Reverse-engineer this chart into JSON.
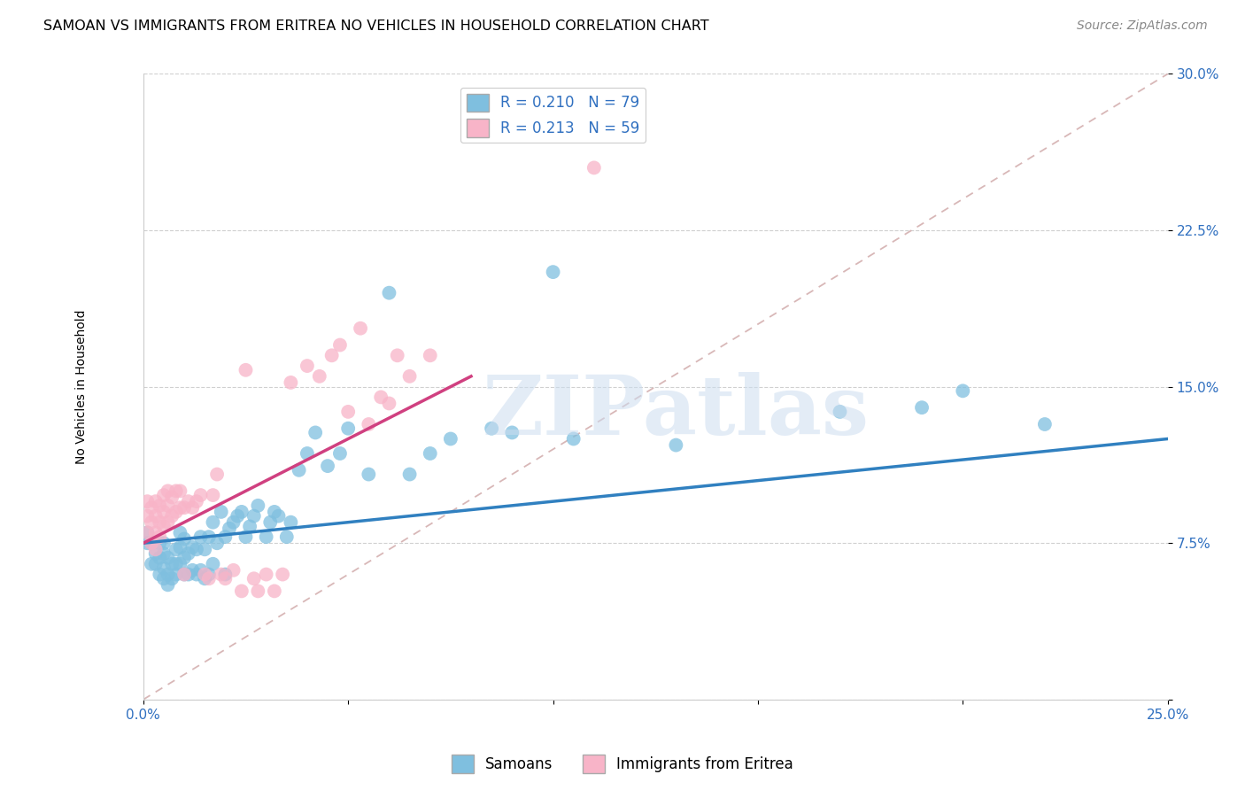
{
  "title": "SAMOAN VS IMMIGRANTS FROM ERITREA NO VEHICLES IN HOUSEHOLD CORRELATION CHART",
  "source": "Source: ZipAtlas.com",
  "ylabel_label": "No Vehicles in Household",
  "watermark": "ZIPatlas",
  "xlim": [
    0.0,
    0.25
  ],
  "ylim": [
    0.0,
    0.3
  ],
  "xtick_positions": [
    0.0,
    0.05,
    0.1,
    0.15,
    0.2,
    0.25
  ],
  "xtick_labels": [
    "0.0%",
    "",
    "",
    "",
    "",
    "25.0%"
  ],
  "ytick_positions": [
    0.0,
    0.075,
    0.15,
    0.225,
    0.3
  ],
  "ytick_labels": [
    "",
    "7.5%",
    "15.0%",
    "22.5%",
    "30.0%"
  ],
  "legend_label1": "R = 0.210   N = 79",
  "legend_label2": "R = 0.213   N = 59",
  "legend_bottom_label1": "Samoans",
  "legend_bottom_label2": "Immigrants from Eritrea",
  "blue_color": "#7fbfdf",
  "pink_color": "#f8b4c8",
  "blue_line_color": "#3080c0",
  "pink_line_color": "#d04080",
  "diagonal_color": "#d4b0b0",
  "blue_scatter_x": [
    0.001,
    0.001,
    0.002,
    0.002,
    0.003,
    0.003,
    0.004,
    0.004,
    0.004,
    0.005,
    0.005,
    0.005,
    0.005,
    0.006,
    0.006,
    0.006,
    0.007,
    0.007,
    0.008,
    0.008,
    0.008,
    0.009,
    0.009,
    0.009,
    0.01,
    0.01,
    0.01,
    0.011,
    0.011,
    0.012,
    0.012,
    0.013,
    0.013,
    0.014,
    0.014,
    0.015,
    0.015,
    0.016,
    0.016,
    0.017,
    0.017,
    0.018,
    0.019,
    0.02,
    0.02,
    0.021,
    0.022,
    0.023,
    0.024,
    0.025,
    0.026,
    0.027,
    0.028,
    0.03,
    0.031,
    0.032,
    0.033,
    0.035,
    0.036,
    0.038,
    0.04,
    0.042,
    0.045,
    0.048,
    0.05,
    0.055,
    0.06,
    0.065,
    0.07,
    0.075,
    0.085,
    0.09,
    0.1,
    0.105,
    0.13,
    0.17,
    0.19,
    0.2,
    0.22
  ],
  "blue_scatter_y": [
    0.075,
    0.08,
    0.065,
    0.075,
    0.065,
    0.07,
    0.06,
    0.068,
    0.075,
    0.058,
    0.063,
    0.07,
    0.075,
    0.055,
    0.06,
    0.068,
    0.058,
    0.065,
    0.06,
    0.065,
    0.072,
    0.065,
    0.073,
    0.08,
    0.06,
    0.068,
    0.077,
    0.06,
    0.07,
    0.062,
    0.073,
    0.06,
    0.072,
    0.062,
    0.078,
    0.058,
    0.072,
    0.06,
    0.078,
    0.065,
    0.085,
    0.075,
    0.09,
    0.06,
    0.078,
    0.082,
    0.085,
    0.088,
    0.09,
    0.078,
    0.083,
    0.088,
    0.093,
    0.078,
    0.085,
    0.09,
    0.088,
    0.078,
    0.085,
    0.11,
    0.118,
    0.128,
    0.112,
    0.118,
    0.13,
    0.108,
    0.195,
    0.108,
    0.118,
    0.125,
    0.13,
    0.128,
    0.205,
    0.125,
    0.122,
    0.138,
    0.14,
    0.148,
    0.132
  ],
  "pink_scatter_x": [
    0.001,
    0.001,
    0.001,
    0.002,
    0.002,
    0.002,
    0.003,
    0.003,
    0.003,
    0.003,
    0.004,
    0.004,
    0.004,
    0.005,
    0.005,
    0.005,
    0.006,
    0.006,
    0.006,
    0.007,
    0.007,
    0.008,
    0.008,
    0.009,
    0.009,
    0.01,
    0.01,
    0.011,
    0.012,
    0.013,
    0.014,
    0.015,
    0.016,
    0.017,
    0.018,
    0.019,
    0.02,
    0.022,
    0.024,
    0.025,
    0.027,
    0.028,
    0.03,
    0.032,
    0.034,
    0.036,
    0.04,
    0.043,
    0.046,
    0.048,
    0.05,
    0.053,
    0.055,
    0.058,
    0.06,
    0.062,
    0.065,
    0.07,
    0.11
  ],
  "pink_scatter_y": [
    0.08,
    0.088,
    0.095,
    0.075,
    0.085,
    0.092,
    0.072,
    0.08,
    0.088,
    0.095,
    0.078,
    0.085,
    0.093,
    0.083,
    0.09,
    0.098,
    0.085,
    0.093,
    0.1,
    0.088,
    0.097,
    0.09,
    0.1,
    0.092,
    0.1,
    0.06,
    0.092,
    0.095,
    0.092,
    0.095,
    0.098,
    0.06,
    0.058,
    0.098,
    0.108,
    0.06,
    0.058,
    0.062,
    0.052,
    0.158,
    0.058,
    0.052,
    0.06,
    0.052,
    0.06,
    0.152,
    0.16,
    0.155,
    0.165,
    0.17,
    0.138,
    0.178,
    0.132,
    0.145,
    0.142,
    0.165,
    0.155,
    0.165,
    0.255
  ],
  "title_fontsize": 11.5,
  "axis_fontsize": 10,
  "tick_fontsize": 11,
  "legend_fontsize": 12,
  "source_fontsize": 10,
  "background_color": "#ffffff",
  "grid_color": "#d0d0d0"
}
